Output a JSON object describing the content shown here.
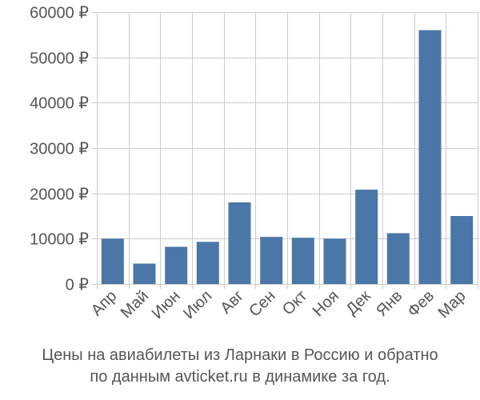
{
  "chart_data": {
    "type": "bar",
    "categories": [
      "Апр",
      "Май",
      "Июн",
      "Июл",
      "Авг",
      "Сен",
      "Окт",
      "Ноя",
      "Дек",
      "Янв",
      "Фев",
      "Мар"
    ],
    "values": [
      10000,
      4500,
      8200,
      9300,
      18000,
      10400,
      10200,
      10000,
      20800,
      11200,
      56000,
      15000
    ],
    "ylim": [
      0,
      60000
    ],
    "yticks": [
      0,
      10000,
      20000,
      30000,
      40000,
      50000,
      60000
    ],
    "ytick_labels": [
      "0 ₽",
      "10000 ₽",
      "20000 ₽",
      "30000 ₽",
      "40000 ₽",
      "50000 ₽",
      "60000 ₽"
    ],
    "grid": true,
    "bar_color": "#4a76a8",
    "grid_color": "#cccccc"
  },
  "caption": {
    "line1": "Цены на авиабилеты из Ларнаки в Россию и обратно",
    "line2": "по данным avticket.ru в динамике за год."
  }
}
